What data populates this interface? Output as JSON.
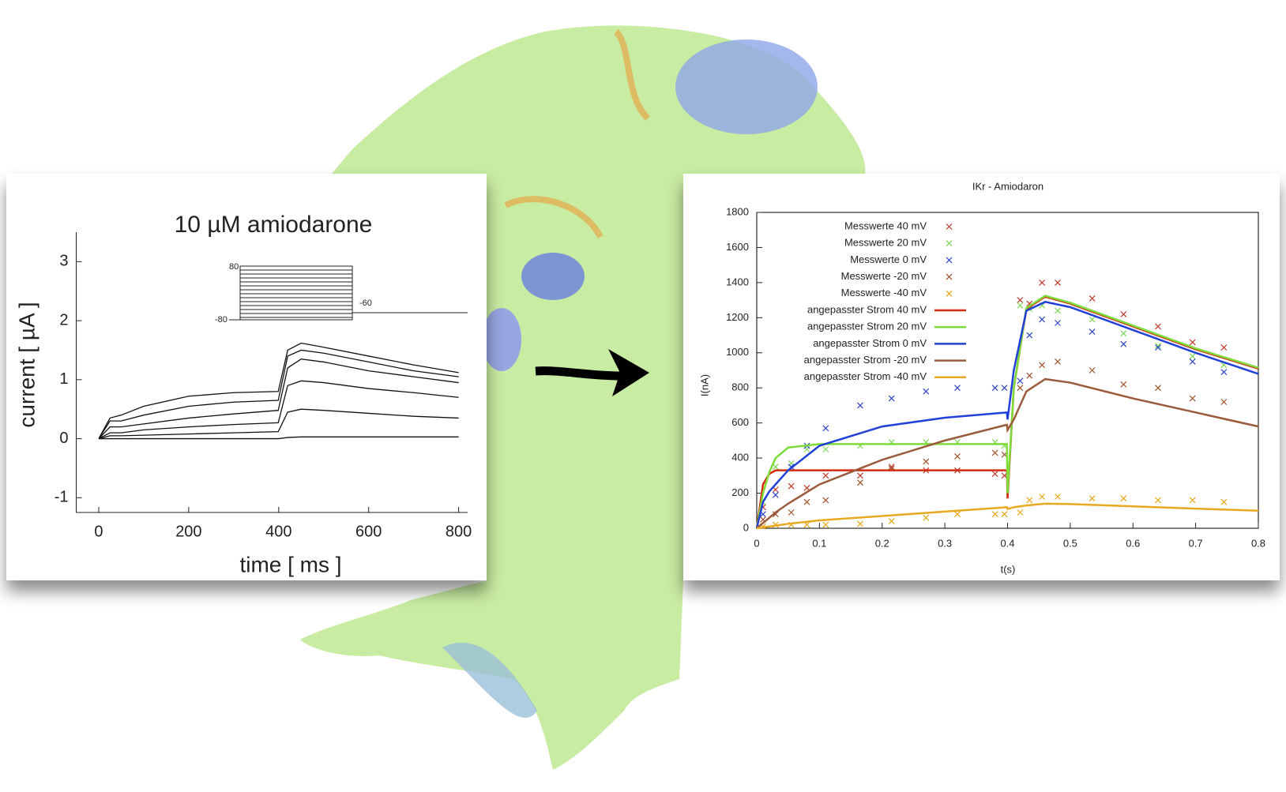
{
  "chart_data": [
    {
      "type": "line",
      "title": "10 µM amiodarone",
      "xlabel": "time [ ms ]",
      "ylabel": "current [ µA ]",
      "xlim": [
        -50,
        820
      ],
      "ylim": [
        -1.25,
        3.5
      ],
      "xticks": [
        0,
        200,
        400,
        600,
        800
      ],
      "yticks": [
        -1,
        0,
        1,
        2,
        3
      ],
      "inset_labels": [
        "80",
        "-80",
        "-60"
      ],
      "x": [
        0,
        25,
        50,
        100,
        200,
        300,
        399,
        420,
        450,
        500,
        600,
        700,
        800
      ],
      "series": [
        {
          "color": "#111111",
          "values": [
            0,
            0.35,
            0.4,
            0.55,
            0.72,
            0.78,
            0.8,
            1.5,
            1.62,
            1.55,
            1.4,
            1.25,
            1.12
          ]
        },
        {
          "color": "#111111",
          "values": [
            0,
            0.3,
            0.3,
            0.4,
            0.55,
            0.62,
            0.65,
            1.4,
            1.5,
            1.45,
            1.3,
            1.15,
            1.05
          ]
        },
        {
          "color": "#111111",
          "values": [
            0,
            0.2,
            0.2,
            0.25,
            0.35,
            0.42,
            0.48,
            1.2,
            1.35,
            1.3,
            1.15,
            1.05,
            0.95
          ]
        },
        {
          "color": "#111111",
          "values": [
            0,
            0.1,
            0.1,
            0.15,
            0.2,
            0.24,
            0.27,
            0.9,
            0.98,
            0.95,
            0.85,
            0.78,
            0.7
          ]
        },
        {
          "color": "#111111",
          "values": [
            0,
            0.05,
            0.05,
            0.06,
            0.08,
            0.1,
            0.12,
            0.45,
            0.5,
            0.48,
            0.43,
            0.38,
            0.35
          ]
        },
        {
          "color": "#111111",
          "values": [
            0,
            0,
            0,
            0,
            0,
            0,
            0,
            0.02,
            0.03,
            0.03,
            0.03,
            0.03,
            0.03
          ]
        }
      ]
    },
    {
      "type": "line",
      "title": "IKr - Amiodaron",
      "xlabel": "t(s)",
      "ylabel": "I(nA)",
      "legend": "upper left",
      "xlim": [
        0,
        0.8
      ],
      "ylim": [
        0,
        1800
      ],
      "xticks": [
        0,
        0.1,
        0.2,
        0.3,
        0.4,
        0.5,
        0.6,
        0.7,
        0.8
      ],
      "yticks": [
        0,
        200,
        400,
        600,
        800,
        1000,
        1200,
        1400,
        1600,
        1800
      ],
      "series": [
        {
          "name": "Messwerte 40 mV",
          "type": "scatter",
          "color": "#c0392b",
          "x": [
            0.01,
            0.03,
            0.055,
            0.08,
            0.11,
            0.165,
            0.215,
            0.27,
            0.32,
            0.38,
            0.395,
            0.42,
            0.435,
            0.455,
            0.48,
            0.535,
            0.585,
            0.64,
            0.695,
            0.745
          ],
          "values": [
            120,
            220,
            240,
            230,
            300,
            300,
            350,
            330,
            330,
            310,
            300,
            1300,
            1280,
            1400,
            1400,
            1310,
            1220,
            1150,
            1060,
            1030
          ]
        },
        {
          "name": "Messwerte 20 mV",
          "type": "scatter",
          "color": "#7ed957",
          "x": [
            0.01,
            0.03,
            0.055,
            0.08,
            0.11,
            0.165,
            0.215,
            0.27,
            0.32,
            0.38,
            0.395,
            0.42,
            0.435,
            0.455,
            0.48,
            0.535,
            0.585,
            0.64,
            0.695,
            0.745
          ],
          "values": [
            150,
            350,
            370,
            450,
            450,
            470,
            490,
            490,
            490,
            490,
            470,
            1270,
            1250,
            1270,
            1240,
            1190,
            1110,
            1040,
            980,
            930
          ]
        },
        {
          "name": "Messwerte 0 mV",
          "type": "scatter",
          "color": "#2f45c8",
          "x": [
            0.01,
            0.03,
            0.055,
            0.08,
            0.11,
            0.165,
            0.215,
            0.27,
            0.32,
            0.38,
            0.395,
            0.42,
            0.435,
            0.455,
            0.48,
            0.535,
            0.585,
            0.64,
            0.695,
            0.745
          ],
          "values": [
            80,
            190,
            350,
            470,
            570,
            700,
            740,
            780,
            800,
            800,
            800,
            840,
            1100,
            1190,
            1170,
            1120,
            1050,
            1030,
            950,
            890
          ]
        },
        {
          "name": "Messwerte -20 mV",
          "type": "scatter",
          "color": "#a0522d",
          "x": [
            0.01,
            0.03,
            0.055,
            0.08,
            0.11,
            0.165,
            0.215,
            0.27,
            0.32,
            0.38,
            0.395,
            0.42,
            0.435,
            0.455,
            0.48,
            0.535,
            0.585,
            0.64,
            0.695,
            0.745
          ],
          "values": [
            50,
            80,
            90,
            150,
            160,
            260,
            340,
            380,
            410,
            430,
            420,
            800,
            870,
            930,
            950,
            900,
            820,
            800,
            740,
            720
          ]
        },
        {
          "name": "Messwerte -40 mV",
          "type": "scatter",
          "color": "#e6a817",
          "x": [
            0.01,
            0.03,
            0.055,
            0.08,
            0.11,
            0.165,
            0.215,
            0.27,
            0.32,
            0.38,
            0.395,
            0.42,
            0.435,
            0.455,
            0.48,
            0.535,
            0.585,
            0.64,
            0.695,
            0.745
          ],
          "values": [
            10,
            20,
            20,
            20,
            20,
            25,
            40,
            60,
            80,
            80,
            80,
            90,
            160,
            180,
            180,
            170,
            170,
            160,
            160,
            150
          ]
        },
        {
          "name": "angepasster Strom 40 mV",
          "type": "line",
          "color": "#d42a10",
          "x": [
            0,
            0.01,
            0.02,
            0.03,
            0.05,
            0.1,
            0.2,
            0.3,
            0.399,
            0.4,
            0.41,
            0.43,
            0.46,
            0.5,
            0.6,
            0.7,
            0.8
          ],
          "values": [
            0,
            250,
            310,
            330,
            330,
            330,
            330,
            330,
            330,
            170,
            800,
            1250,
            1320,
            1280,
            1150,
            1020,
            910
          ]
        },
        {
          "name": "angepasster Strom 20 mV",
          "type": "line",
          "color": "#7ddc3a",
          "x": [
            0,
            0.01,
            0.02,
            0.03,
            0.05,
            0.1,
            0.2,
            0.3,
            0.399,
            0.4,
            0.41,
            0.43,
            0.46,
            0.5,
            0.6,
            0.7,
            0.8
          ],
          "values": [
            0,
            200,
            320,
            400,
            460,
            480,
            480,
            480,
            480,
            200,
            800,
            1255,
            1325,
            1285,
            1155,
            1025,
            915
          ]
        },
        {
          "name": "angepasster Strom 0 mV",
          "type": "line",
          "color": "#2040d8",
          "x": [
            0,
            0.01,
            0.02,
            0.03,
            0.05,
            0.1,
            0.2,
            0.3,
            0.399,
            0.4,
            0.41,
            0.43,
            0.46,
            0.5,
            0.6,
            0.7,
            0.8
          ],
          "values": [
            0,
            150,
            210,
            250,
            330,
            470,
            580,
            630,
            660,
            620,
            900,
            1240,
            1290,
            1260,
            1130,
            1000,
            880
          ]
        },
        {
          "name": "angepasster Strom -20 mV",
          "type": "line",
          "color": "#9b5a3c",
          "x": [
            0,
            0.01,
            0.02,
            0.03,
            0.05,
            0.1,
            0.2,
            0.3,
            0.399,
            0.4,
            0.41,
            0.43,
            0.46,
            0.5,
            0.6,
            0.7,
            0.8
          ],
          "values": [
            0,
            30,
            60,
            90,
            140,
            250,
            390,
            500,
            590,
            560,
            620,
            780,
            850,
            830,
            740,
            660,
            580
          ]
        },
        {
          "name": "angepasster Strom -40 mV",
          "type": "line",
          "color": "#e8a820",
          "x": [
            0,
            0.01,
            0.02,
            0.03,
            0.05,
            0.1,
            0.2,
            0.3,
            0.399,
            0.4,
            0.41,
            0.43,
            0.46,
            0.5,
            0.6,
            0.7,
            0.8
          ],
          "values": [
            0,
            5,
            10,
            15,
            25,
            45,
            70,
            95,
            120,
            110,
            120,
            130,
            140,
            138,
            125,
            112,
            100
          ]
        }
      ]
    }
  ]
}
